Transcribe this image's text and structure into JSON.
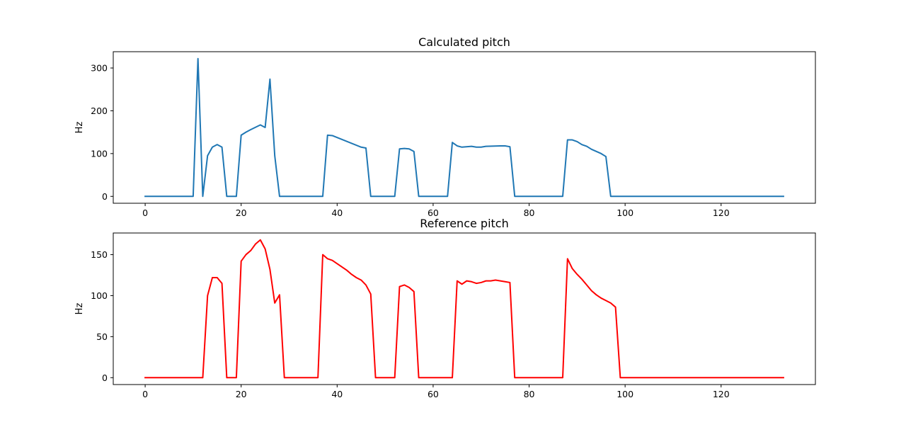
{
  "chart_data": [
    {
      "type": "line",
      "title": "Calculated pitch",
      "xlabel": "",
      "ylabel": "Hz",
      "xlim": [
        -6.65,
        139.65
      ],
      "ylim": [
        -16.1,
        338.1
      ],
      "xticks": [
        0,
        20,
        40,
        60,
        80,
        100,
        120
      ],
      "yticks": [
        0,
        100,
        200,
        300
      ],
      "grid": false,
      "series": [
        {
          "color": "#1f77b4",
          "points": [
            [
              0,
              0
            ],
            [
              10,
              0
            ],
            [
              11,
              322
            ],
            [
              12,
              0
            ],
            [
              13,
              95
            ],
            [
              14,
              115
            ],
            [
              15,
              121
            ],
            [
              16,
              115
            ],
            [
              17,
              0
            ],
            [
              19,
              0
            ],
            [
              20,
              143
            ],
            [
              21,
              150
            ],
            [
              22,
              156
            ],
            [
              24,
              167
            ],
            [
              25,
              161
            ],
            [
              26,
              274
            ],
            [
              27,
              95
            ],
            [
              28,
              0
            ],
            [
              37,
              0
            ],
            [
              38,
              143
            ],
            [
              39,
              142
            ],
            [
              45,
              115
            ],
            [
              46,
              113
            ],
            [
              47,
              0
            ],
            [
              52,
              0
            ],
            [
              53,
              111
            ],
            [
              54,
              112
            ],
            [
              55,
              111
            ],
            [
              56,
              105
            ],
            [
              57,
              0
            ],
            [
              63,
              0
            ],
            [
              64,
              126
            ],
            [
              65,
              118
            ],
            [
              66,
              115
            ],
            [
              68,
              117
            ],
            [
              69,
              115
            ],
            [
              70,
              115
            ],
            [
              71,
              117
            ],
            [
              74,
              118
            ],
            [
              75,
              118
            ],
            [
              76,
              116
            ],
            [
              77,
              0
            ],
            [
              87,
              0
            ],
            [
              88,
              132
            ],
            [
              89,
              132
            ],
            [
              90,
              128
            ],
            [
              91,
              121
            ],
            [
              92,
              117
            ],
            [
              93,
              110
            ],
            [
              95,
              100
            ],
            [
              96,
              93
            ],
            [
              97,
              0
            ],
            [
              133,
              0
            ]
          ]
        }
      ]
    },
    {
      "type": "line",
      "title": "Reference pitch",
      "xlabel": "",
      "ylabel": "Hz",
      "xlim": [
        -6.65,
        139.65
      ],
      "ylim": [
        -8.4,
        176.4
      ],
      "xticks": [
        0,
        20,
        40,
        60,
        80,
        100,
        120
      ],
      "yticks": [
        0,
        50,
        100,
        150
      ],
      "grid": false,
      "series": [
        {
          "color": "#ff0000",
          "points": [
            [
              0,
              0
            ],
            [
              12,
              0
            ],
            [
              13,
              100
            ],
            [
              14,
              122
            ],
            [
              15,
              122
            ],
            [
              16,
              115
            ],
            [
              17,
              0
            ],
            [
              19,
              0
            ],
            [
              20,
              142
            ],
            [
              21,
              150
            ],
            [
              22,
              155
            ],
            [
              23,
              163
            ],
            [
              24,
              168
            ],
            [
              25,
              157
            ],
            [
              26,
              132
            ],
            [
              27,
              91
            ],
            [
              28,
              101
            ],
            [
              29,
              0
            ],
            [
              36,
              0
            ],
            [
              37,
              150
            ],
            [
              38,
              145
            ],
            [
              39,
              143
            ],
            [
              40,
              139
            ],
            [
              42,
              131
            ],
            [
              43,
              126
            ],
            [
              44,
              122
            ],
            [
              45,
              119
            ],
            [
              46,
              113
            ],
            [
              47,
              102
            ],
            [
              48,
              0
            ],
            [
              52,
              0
            ],
            [
              53,
              111
            ],
            [
              54,
              113
            ],
            [
              55,
              110
            ],
            [
              56,
              105
            ],
            [
              57,
              0
            ],
            [
              64,
              0
            ],
            [
              65,
              118
            ],
            [
              66,
              114
            ],
            [
              67,
              118
            ],
            [
              68,
              117
            ],
            [
              69,
              115
            ],
            [
              70,
              116
            ],
            [
              71,
              118
            ],
            [
              72,
              118
            ],
            [
              73,
              119
            ],
            [
              74,
              118
            ],
            [
              75,
              117
            ],
            [
              76,
              116
            ],
            [
              77,
              0
            ],
            [
              87,
              0
            ],
            [
              88,
              145
            ],
            [
              89,
              133
            ],
            [
              90,
              126
            ],
            [
              91,
              120
            ],
            [
              92,
              113
            ],
            [
              93,
              106
            ],
            [
              94,
              101
            ],
            [
              95,
              97
            ],
            [
              96,
              94
            ],
            [
              97,
              91
            ],
            [
              98,
              86
            ],
            [
              99,
              0
            ],
            [
              133,
              0
            ]
          ]
        }
      ]
    }
  ]
}
